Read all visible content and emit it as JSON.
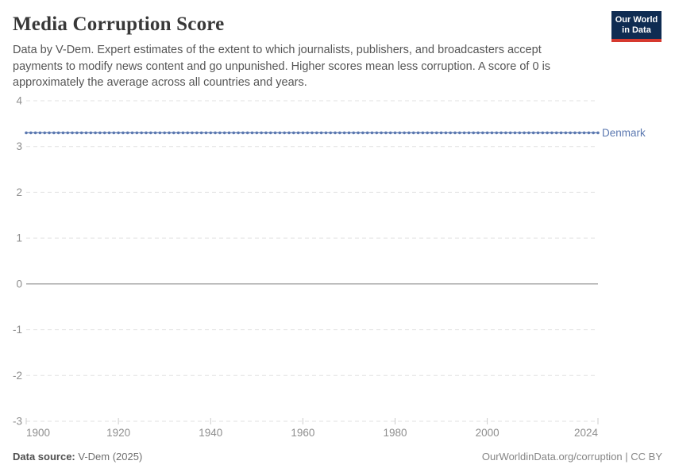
{
  "page": {
    "background": "#ffffff"
  },
  "header": {
    "title": "Media Corruption Score",
    "subtitle": "Data by V-Dem. Expert estimates of the extent to which journalists, publishers, and broadcasters accept payments to modify news content and go unpunished. Higher scores mean less corruption. A score of 0 is approximately the average across all countries and years.",
    "logo": {
      "line1": "Our World",
      "line2": "in Data",
      "bg_color": "#0f2c52",
      "accent_color": "#d6392f",
      "text_color": "#ffffff"
    }
  },
  "chart_data": {
    "type": "line",
    "title": "Media Corruption Score",
    "xlabel": "",
    "ylabel": "",
    "xlim": [
      1900,
      2024
    ],
    "ylim": [
      -3,
      4
    ],
    "x_ticks": [
      1900,
      1920,
      1940,
      1960,
      1980,
      2000,
      2024
    ],
    "y_ticks": [
      4,
      3,
      2,
      1,
      0,
      -1,
      -2,
      -3
    ],
    "grid": "horizontal dashed gridlines; solid axis line at y=0; dashed baseline at y=-3 with small x tick marks",
    "legend_position": "label at right end of line",
    "series": [
      {
        "name": "Denmark",
        "color": "#5b78b0",
        "marker": "circle",
        "x_start": 1900,
        "x_end": 2024,
        "x_step": 1,
        "value_constant": 3.3,
        "note": "flat line, constant value ~3.3 for every year 1900-2024"
      }
    ],
    "style": {
      "gridline_color": "#e2e2e2",
      "zero_line_color": "#b3b3b3",
      "tick_label_color": "#8e8e8e"
    }
  },
  "footer": {
    "source_label": "Data source:",
    "source_value": "V-Dem (2025)",
    "credit": "OurWorldinData.org/corruption | CC BY"
  }
}
